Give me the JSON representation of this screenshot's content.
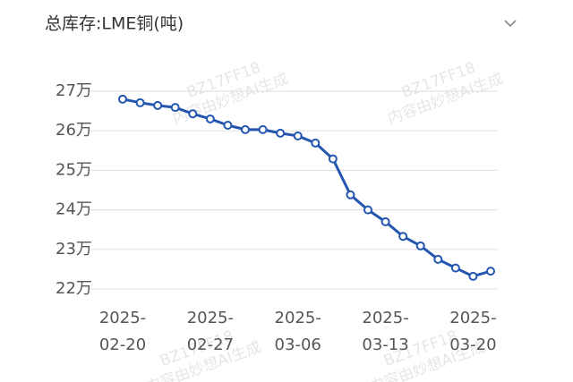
{
  "chart_data": {
    "type": "line",
    "title": "总库存:LME铜(吨)",
    "watermark": [
      "BZ17FF18",
      "内容由妙想AI生成"
    ],
    "categories": [
      "2025-02-20",
      null,
      null,
      null,
      null,
      "2025-02-27",
      null,
      null,
      null,
      null,
      "2025-03-06",
      null,
      null,
      null,
      null,
      "2025-03-13",
      null,
      null,
      null,
      null,
      "2025-03-20",
      null
    ],
    "series": [
      {
        "color": "#2456b0",
        "values": [
          268000,
          267100,
          266400,
          265900,
          264300,
          263000,
          261400,
          260300,
          260300,
          259400,
          258700,
          256900,
          252900,
          243800,
          240000,
          237000,
          233300,
          230900,
          227500,
          225300,
          223200,
          224500
        ]
      }
    ],
    "ylim": [
      220000,
      270000
    ],
    "yticks": [
      {
        "value": 220000,
        "label": "22万"
      },
      {
        "value": 230000,
        "label": "23万"
      },
      {
        "value": 240000,
        "label": "24万"
      },
      {
        "value": 250000,
        "label": "25万"
      },
      {
        "value": 260000,
        "label": "26万"
      },
      {
        "value": 270000,
        "label": "27万"
      }
    ],
    "grid": true
  }
}
